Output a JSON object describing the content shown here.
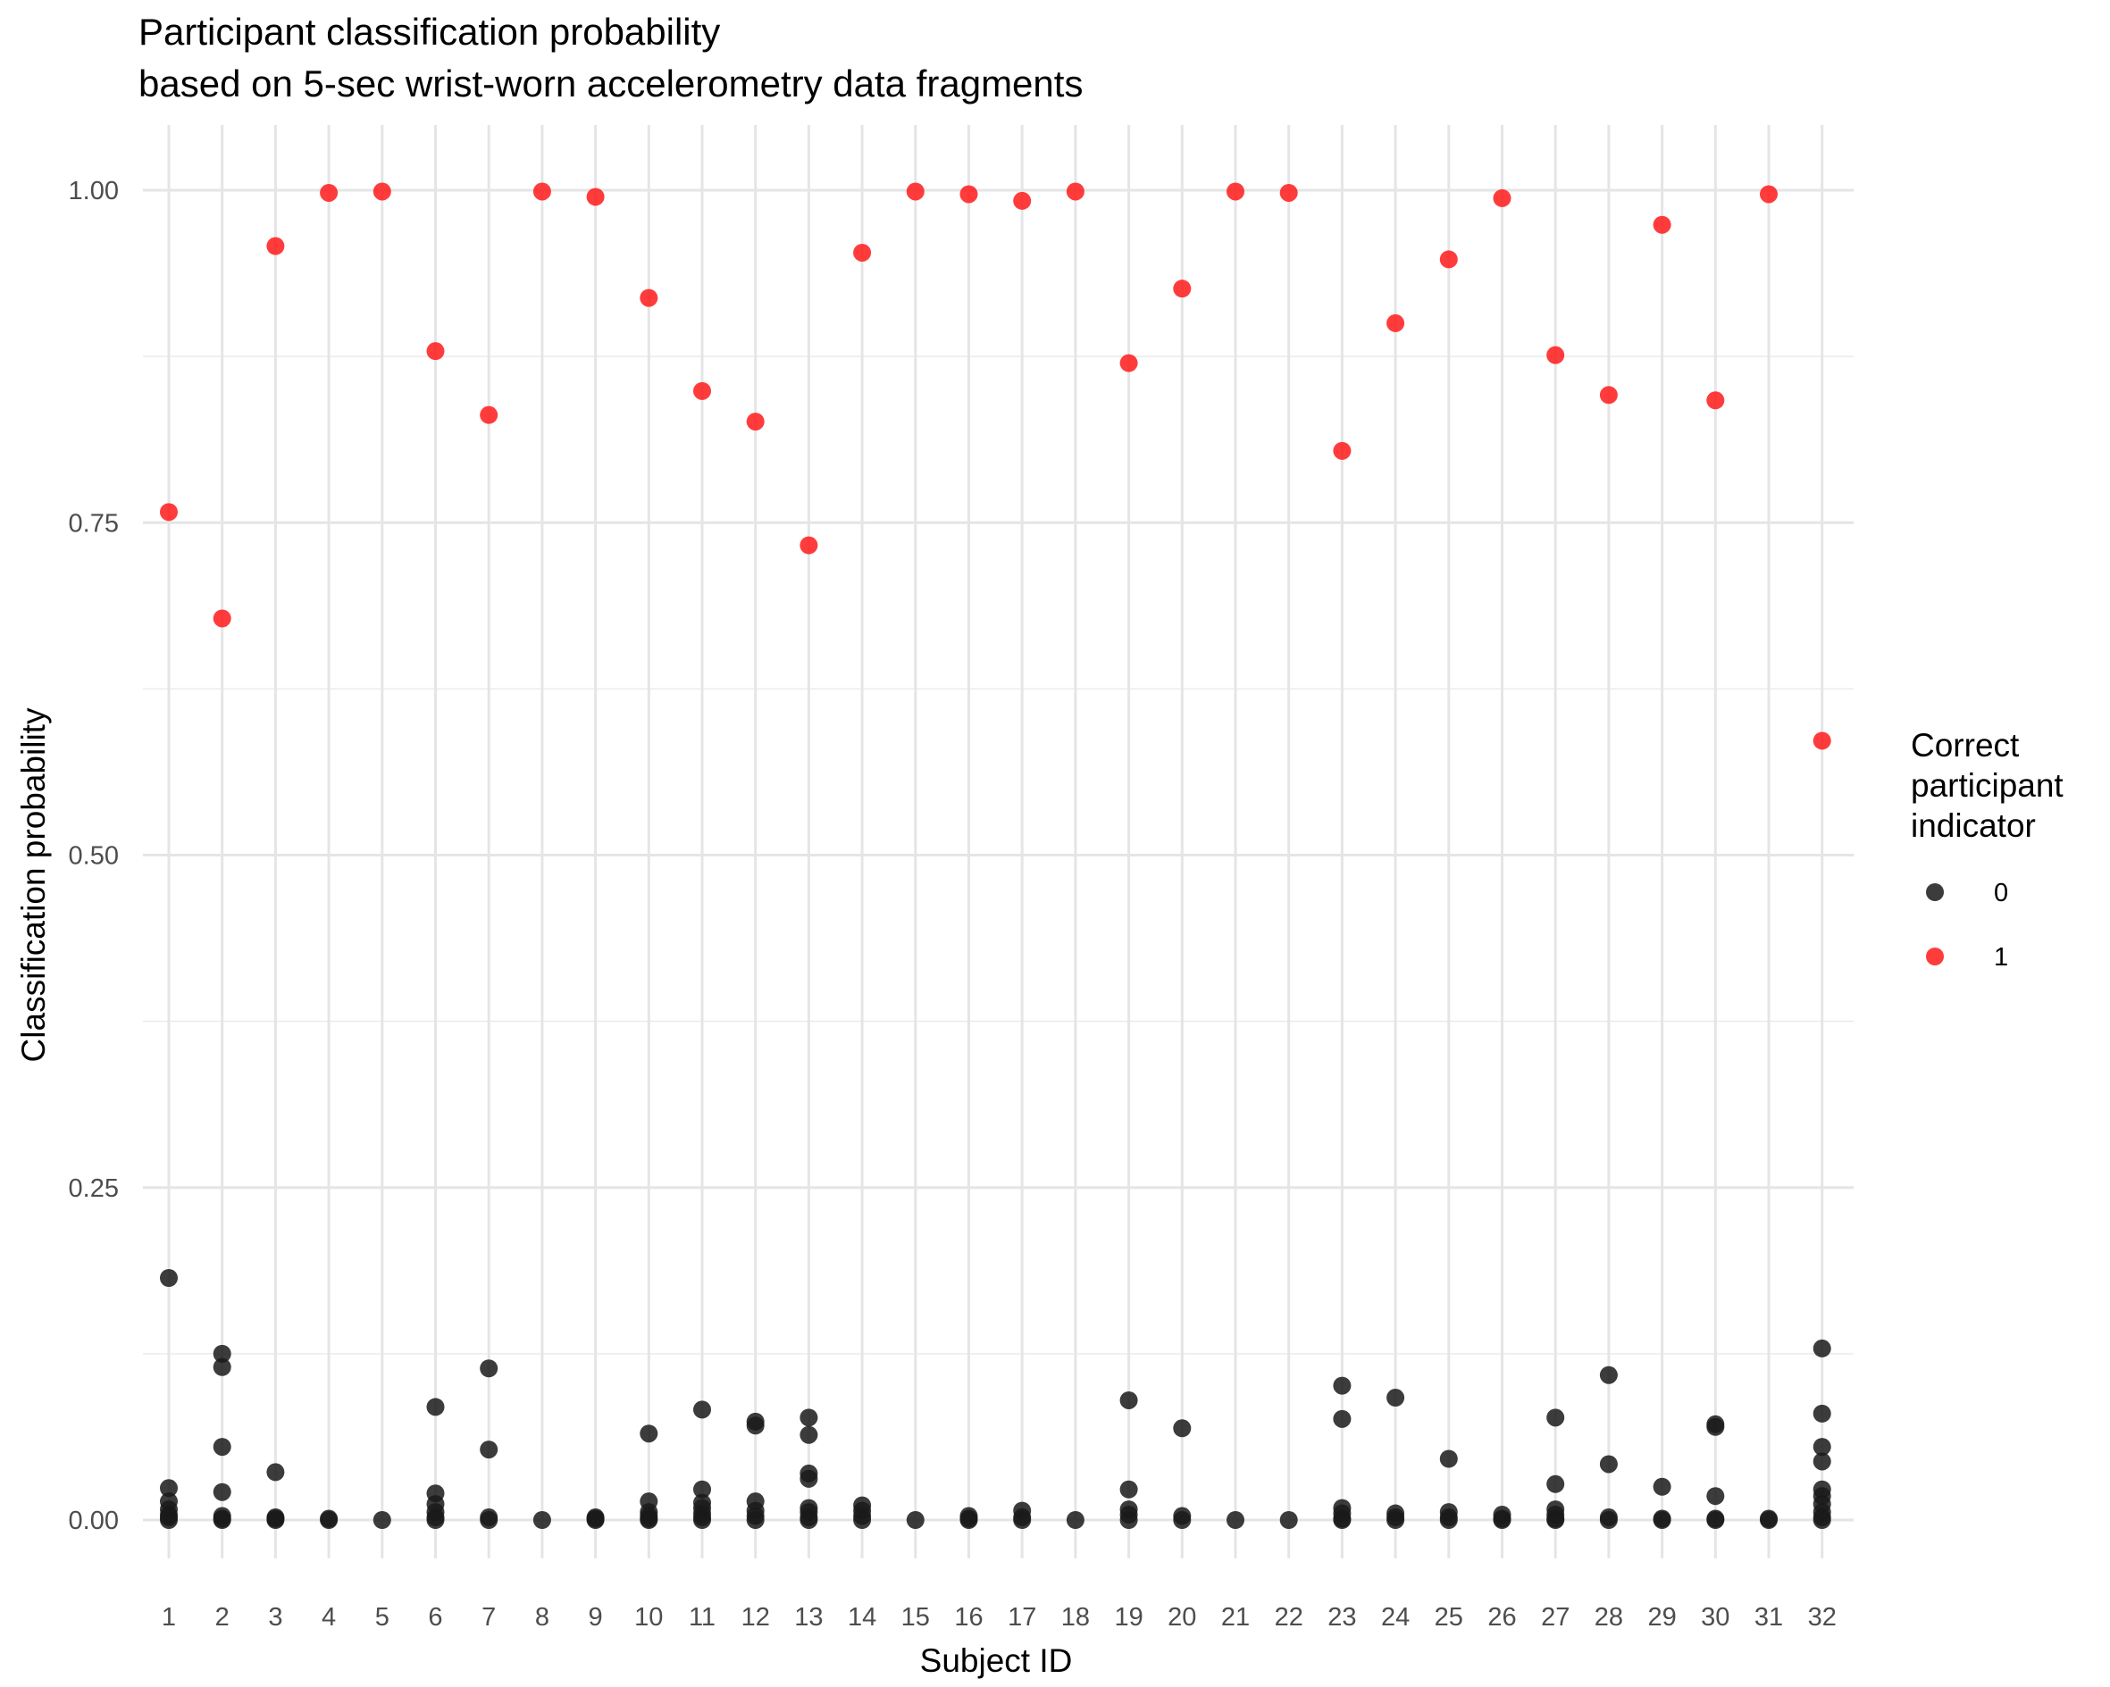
{
  "chart_data": {
    "type": "scatter",
    "title": "Participant classification probability",
    "subtitle": "based on 5-sec wrist-worn accelerometry data fragments",
    "xlabel": "Subject ID",
    "ylabel": "Classification probability",
    "categories": [
      "1",
      "2",
      "3",
      "4",
      "5",
      "6",
      "7",
      "8",
      "9",
      "10",
      "11",
      "12",
      "13",
      "14",
      "15",
      "16",
      "17",
      "18",
      "19",
      "20",
      "21",
      "22",
      "23",
      "24",
      "25",
      "26",
      "27",
      "28",
      "29",
      "30",
      "31",
      "32"
    ],
    "ylim": [
      -0.055,
      1.055
    ],
    "yticks": [
      {
        "value": 0.0,
        "label": "0.00"
      },
      {
        "value": 0.25,
        "label": "0.25"
      },
      {
        "value": 0.5,
        "label": "0.50"
      },
      {
        "value": 0.75,
        "label": "0.75"
      },
      {
        "value": 1.0,
        "label": "1.00"
      }
    ],
    "grid": true,
    "legend": {
      "title_lines": [
        "Correct",
        "participant",
        "indicator"
      ],
      "placement": "right"
    },
    "series": [
      {
        "name": "0",
        "color": "#1a1a1a",
        "points": [
          [
            1,
            0.182
          ],
          [
            1,
            0.024
          ],
          [
            1,
            0.014
          ],
          [
            1,
            0.008
          ],
          [
            1,
            0.004
          ],
          [
            1,
            0.002
          ],
          [
            1,
            0.0
          ],
          [
            2,
            0.125
          ],
          [
            2,
            0.115
          ],
          [
            2,
            0.055
          ],
          [
            2,
            0.021
          ],
          [
            2,
            0.003
          ],
          [
            2,
            0.001
          ],
          [
            2,
            0.0
          ],
          [
            3,
            0.036
          ],
          [
            3,
            0.002
          ],
          [
            3,
            0.001
          ],
          [
            3,
            0.0
          ],
          [
            4,
            0.001
          ],
          [
            4,
            0.0
          ],
          [
            5,
            0.0
          ],
          [
            6,
            0.085
          ],
          [
            6,
            0.02
          ],
          [
            6,
            0.012
          ],
          [
            6,
            0.006
          ],
          [
            6,
            0.002
          ],
          [
            6,
            0.0
          ],
          [
            7,
            0.114
          ],
          [
            7,
            0.053
          ],
          [
            7,
            0.002
          ],
          [
            7,
            0.0
          ],
          [
            8,
            0.0
          ],
          [
            9,
            0.002
          ],
          [
            9,
            0.001
          ],
          [
            9,
            0.0
          ],
          [
            10,
            0.065
          ],
          [
            10,
            0.014
          ],
          [
            10,
            0.006
          ],
          [
            10,
            0.003
          ],
          [
            10,
            0.001
          ],
          [
            10,
            0.0
          ],
          [
            11,
            0.083
          ],
          [
            11,
            0.023
          ],
          [
            11,
            0.013
          ],
          [
            11,
            0.009
          ],
          [
            11,
            0.005
          ],
          [
            11,
            0.002
          ],
          [
            11,
            0.0
          ],
          [
            12,
            0.074
          ],
          [
            12,
            0.071
          ],
          [
            12,
            0.014
          ],
          [
            12,
            0.007
          ],
          [
            12,
            0.003
          ],
          [
            12,
            0.0
          ],
          [
            13,
            0.077
          ],
          [
            13,
            0.064
          ],
          [
            13,
            0.035
          ],
          [
            13,
            0.031
          ],
          [
            13,
            0.009
          ],
          [
            13,
            0.006
          ],
          [
            13,
            0.002
          ],
          [
            13,
            0.0
          ],
          [
            14,
            0.011
          ],
          [
            14,
            0.007
          ],
          [
            14,
            0.003
          ],
          [
            14,
            0.0
          ],
          [
            15,
            0.0
          ],
          [
            16,
            0.003
          ],
          [
            16,
            0.001
          ],
          [
            16,
            0.0
          ],
          [
            17,
            0.007
          ],
          [
            17,
            0.002
          ],
          [
            17,
            0.0
          ],
          [
            18,
            0.0
          ],
          [
            19,
            0.09
          ],
          [
            19,
            0.023
          ],
          [
            19,
            0.008
          ],
          [
            19,
            0.004
          ],
          [
            19,
            0.0
          ],
          [
            20,
            0.069
          ],
          [
            20,
            0.003
          ],
          [
            20,
            0.0
          ],
          [
            21,
            0.0
          ],
          [
            22,
            0.0
          ],
          [
            23,
            0.101
          ],
          [
            23,
            0.076
          ],
          [
            23,
            0.009
          ],
          [
            23,
            0.005
          ],
          [
            23,
            0.001
          ],
          [
            23,
            0.0
          ],
          [
            24,
            0.092
          ],
          [
            24,
            0.005
          ],
          [
            24,
            0.002
          ],
          [
            24,
            0.0
          ],
          [
            25,
            0.046
          ],
          [
            25,
            0.006
          ],
          [
            25,
            0.002
          ],
          [
            25,
            0.0
          ],
          [
            26,
            0.004
          ],
          [
            26,
            0.001
          ],
          [
            26,
            0.0
          ],
          [
            27,
            0.077
          ],
          [
            27,
            0.027
          ],
          [
            27,
            0.008
          ],
          [
            27,
            0.004
          ],
          [
            27,
            0.001
          ],
          [
            27,
            0.0
          ],
          [
            28,
            0.109
          ],
          [
            28,
            0.042
          ],
          [
            28,
            0.002
          ],
          [
            28,
            0.0
          ],
          [
            29,
            0.025
          ],
          [
            29,
            0.001
          ],
          [
            29,
            0.0
          ],
          [
            30,
            0.072
          ],
          [
            30,
            0.07
          ],
          [
            30,
            0.018
          ],
          [
            30,
            0.001
          ],
          [
            30,
            0.0
          ],
          [
            31,
            0.001
          ],
          [
            31,
            0.0
          ],
          [
            32,
            0.129
          ],
          [
            32,
            0.08
          ],
          [
            32,
            0.055
          ],
          [
            32,
            0.044
          ],
          [
            32,
            0.023
          ],
          [
            32,
            0.018
          ],
          [
            32,
            0.012
          ],
          [
            32,
            0.006
          ],
          [
            32,
            0.002
          ],
          [
            32,
            0.0
          ]
        ]
      },
      {
        "name": "1",
        "color": "#ff1a1a",
        "points": [
          [
            1,
            0.758
          ],
          [
            2,
            0.678
          ],
          [
            3,
            0.958
          ],
          [
            4,
            0.998
          ],
          [
            5,
            0.999
          ],
          [
            6,
            0.879
          ],
          [
            7,
            0.831
          ],
          [
            8,
            0.999
          ],
          [
            9,
            0.995
          ],
          [
            10,
            0.919
          ],
          [
            11,
            0.849
          ],
          [
            12,
            0.826
          ],
          [
            13,
            0.733
          ],
          [
            14,
            0.953
          ],
          [
            15,
            0.999
          ],
          [
            16,
            0.997
          ],
          [
            17,
            0.992
          ],
          [
            18,
            0.999
          ],
          [
            19,
            0.87
          ],
          [
            20,
            0.926
          ],
          [
            21,
            0.999
          ],
          [
            22,
            0.998
          ],
          [
            23,
            0.804
          ],
          [
            24,
            0.9
          ],
          [
            25,
            0.948
          ],
          [
            26,
            0.994
          ],
          [
            27,
            0.876
          ],
          [
            28,
            0.846
          ],
          [
            29,
            0.974
          ],
          [
            30,
            0.842
          ],
          [
            31,
            0.997
          ],
          [
            32,
            0.586
          ]
        ]
      }
    ]
  }
}
